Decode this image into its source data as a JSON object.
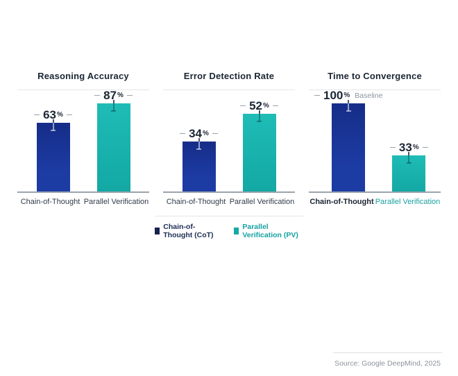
{
  "chart_data": [
    {
      "type": "bar",
      "title": "Reasoning Accuracy",
      "categories": [
        "Chain-of-Thought",
        "Parallel Verification"
      ],
      "values": [
        63,
        87
      ],
      "unit": "%",
      "ylim": [
        0,
        100
      ],
      "grid": false,
      "error_bars": true
    },
    {
      "type": "bar",
      "title": "Error Detection Rate",
      "categories": [
        "Chain-of-Thought",
        "Parallel Verification"
      ],
      "values": [
        34,
        52
      ],
      "unit": "%",
      "ylim": [
        0,
        100
      ],
      "grid": false,
      "error_bars": true
    },
    {
      "type": "bar",
      "title": "Time to Convergence",
      "categories": [
        "Chain-of-Thought",
        "Parallel Verification"
      ],
      "values": [
        100,
        33
      ],
      "unit": "%",
      "baseline_label": "Baseline",
      "ylim": [
        0,
        110
      ],
      "grid": false,
      "error_bars": true
    }
  ],
  "legend": {
    "position": "bottom-center",
    "items": [
      {
        "label": "Chain-of-Thought (CoT)",
        "color": "#16224f"
      },
      {
        "label": "Parallel Verification (PV)",
        "color": "#16a8a5"
      }
    ]
  },
  "source": "Source: Google DeepMind, 2025",
  "colors": {
    "cot_bar": "#1c3ba3",
    "pv_bar": "#15b0ab",
    "title_text": "#1b2533",
    "muted_text": "#8d939c",
    "axis_line": "#9aa3ad",
    "divider": "#e4e7eb"
  }
}
